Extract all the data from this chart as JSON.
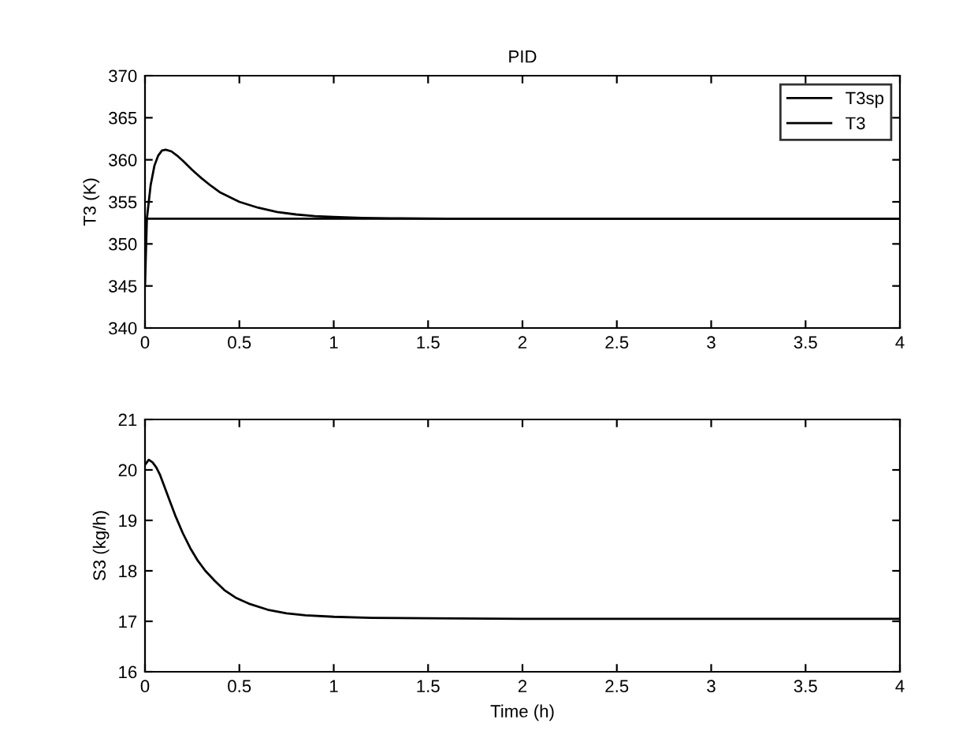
{
  "chart_data": [
    {
      "type": "line",
      "title": "PID",
      "ylabel": "T3 (K)",
      "xlim": [
        0,
        4
      ],
      "ylim": [
        340,
        370
      ],
      "xticks": [
        0,
        0.5,
        1,
        1.5,
        2,
        2.5,
        3,
        3.5,
        4
      ],
      "yticks": [
        340,
        345,
        350,
        355,
        360,
        365,
        370
      ],
      "legend": "top right",
      "grid": false,
      "line_style": "solid",
      "marker": "none",
      "series": [
        {
          "name": "T3sp",
          "color": "#000000",
          "x": [
            0,
            4
          ],
          "values": [
            353,
            353
          ]
        },
        {
          "name": "T3",
          "color": "#000000",
          "x": [
            0,
            0.01,
            0.02,
            0.03,
            0.05,
            0.07,
            0.09,
            0.11,
            0.14,
            0.17,
            0.2,
            0.25,
            0.3,
            0.35,
            0.4,
            0.5,
            0.6,
            0.7,
            0.8,
            0.9,
            1.0,
            1.15,
            1.3,
            1.6,
            2,
            3,
            4
          ],
          "values": [
            345,
            353,
            355,
            357,
            359.3,
            360.5,
            361.1,
            361.2,
            361,
            360.5,
            359.9,
            358.8,
            357.8,
            356.9,
            356.1,
            355,
            354.3,
            353.8,
            353.5,
            353.3,
            353.2,
            353.1,
            353.05,
            353,
            353,
            353,
            353
          ]
        }
      ]
    },
    {
      "type": "line",
      "xlabel": "Time (h)",
      "ylabel": "S3 (kg/h)",
      "xlim": [
        0,
        4
      ],
      "ylim": [
        16,
        21
      ],
      "xticks": [
        0,
        0.5,
        1,
        1.5,
        2,
        2.5,
        3,
        3.5,
        4
      ],
      "yticks": [
        16,
        17,
        18,
        19,
        20,
        21
      ],
      "grid": false,
      "line_style": "solid",
      "marker": "none",
      "series": [
        {
          "color": "#000000",
          "x": [
            0,
            0.02,
            0.04,
            0.06,
            0.08,
            0.1,
            0.13,
            0.16,
            0.2,
            0.24,
            0.28,
            0.32,
            0.37,
            0.42,
            0.48,
            0.55,
            0.65,
            0.75,
            0.85,
            1.0,
            1.2,
            1.5,
            2,
            3,
            4
          ],
          "values": [
            20.1,
            20.2,
            20.15,
            20.05,
            19.9,
            19.7,
            19.4,
            19.1,
            18.75,
            18.45,
            18.2,
            18.0,
            17.8,
            17.62,
            17.47,
            17.35,
            17.23,
            17.16,
            17.12,
            17.09,
            17.07,
            17.06,
            17.05,
            17.05,
            17.05
          ]
        }
      ]
    }
  ]
}
